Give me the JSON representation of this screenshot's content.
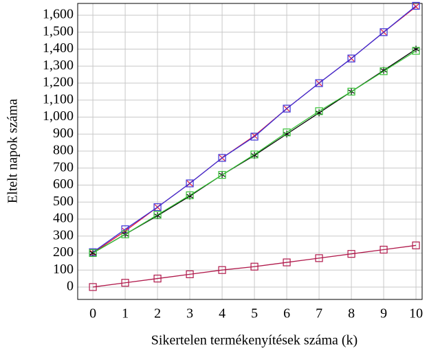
{
  "chart_data": {
    "type": "line",
    "x_label": "Sikertelen termékenyítések száma (k)",
    "y_label": "Eltelt napok száma",
    "x": [
      0,
      1,
      2,
      3,
      4,
      5,
      6,
      7,
      8,
      9,
      10
    ],
    "xlim": [
      -0.47,
      10.19
    ],
    "ylim": [
      -73,
      1669
    ],
    "xticks": [
      0,
      1,
      2,
      3,
      4,
      5,
      6,
      7,
      8,
      9,
      10
    ],
    "yticks": [
      0,
      100,
      200,
      300,
      400,
      500,
      600,
      700,
      800,
      900,
      {
        "value": 1000,
        "label": "1,000"
      },
      {
        "value": 1100,
        "label": "1,100"
      },
      {
        "value": 1200,
        "label": "1,200"
      },
      {
        "value": 1300,
        "label": "1,300"
      },
      {
        "value": 1400,
        "label": "1,400"
      },
      {
        "value": 1500,
        "label": "1,500"
      },
      {
        "value": 1600,
        "label": "1,600"
      }
    ],
    "grid": true,
    "series": [
      {
        "color": "#e8173a",
        "marker": "x",
        "values": [
          200,
          330,
          470,
          610,
          760,
          890,
          1050,
          1200,
          1345,
          1500,
          1650
        ]
      },
      {
        "color": "#3a2fd6",
        "marker": "square",
        "values": [
          205,
          340,
          470,
          610,
          760,
          885,
          1050,
          1200,
          1345,
          1500,
          1655
        ]
      },
      {
        "color": "#000000",
        "marker": "star",
        "values": [
          200,
          310,
          420,
          535,
          660,
          775,
          900,
          1025,
          1150,
          1275,
          1400
        ]
      },
      {
        "color": "#36c236",
        "marker": "square",
        "values": [
          200,
          310,
          425,
          540,
          660,
          780,
          910,
          1035,
          1150,
          1270,
          1390
        ]
      },
      {
        "color": "#b0184a",
        "marker": "square",
        "values": [
          0,
          25,
          50,
          75,
          100,
          120,
          145,
          170,
          195,
          220,
          245
        ]
      }
    ]
  }
}
